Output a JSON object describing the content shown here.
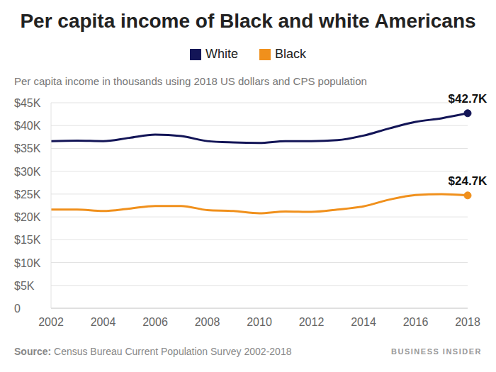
{
  "chart_data": {
    "type": "line",
    "title": "Per capita income of Black and white Americans",
    "subtitle": "Per capita income in thousands using 2018 US dollars and CPS population",
    "x": [
      2002,
      2003,
      2004,
      2005,
      2006,
      2007,
      2008,
      2009,
      2010,
      2011,
      2012,
      2013,
      2014,
      2015,
      2016,
      2017,
      2018
    ],
    "series": [
      {
        "name": "White",
        "color": "#131557",
        "values": [
          36.6,
          36.7,
          36.6,
          37.3,
          38.0,
          37.7,
          36.6,
          36.3,
          36.2,
          36.6,
          36.6,
          36.8,
          37.8,
          39.4,
          40.8,
          41.6,
          42.7
        ]
      },
      {
        "name": "Black",
        "color": "#f0901c",
        "values": [
          21.6,
          21.6,
          21.3,
          21.8,
          22.4,
          22.4,
          21.5,
          21.3,
          20.8,
          21.2,
          21.1,
          21.6,
          22.3,
          23.8,
          24.8,
          25.0,
          24.7
        ]
      }
    ],
    "xlim": [
      2002,
      2018
    ],
    "xticks": [
      2002,
      2004,
      2006,
      2008,
      2010,
      2012,
      2014,
      2016,
      2018
    ],
    "ylim": [
      0,
      45
    ],
    "yticks": [
      0,
      {
        "value": 5,
        "label": "$5K"
      },
      {
        "value": 10,
        "label": "$10K"
      },
      {
        "value": 15,
        "label": "$15K"
      },
      {
        "value": 20,
        "label": "$20K"
      },
      {
        "value": 25,
        "label": "$25K"
      },
      {
        "value": 30,
        "label": "$30K"
      },
      {
        "value": 35,
        "label": "$35K"
      },
      {
        "value": 40,
        "label": "$40K"
      },
      {
        "value": 45,
        "label": "$45K"
      }
    ],
    "grid": true,
    "legend": "top",
    "annotations": [
      {
        "series": "White",
        "x": 2018,
        "y": 42.7,
        "text": "$42.7K"
      },
      {
        "series": "Black",
        "x": 2018,
        "y": 24.7,
        "text": "$24.7K"
      }
    ],
    "source_label": "Source:",
    "source": "Census Bureau Current Population Survey 2002-2018",
    "credit": "BUSINESS INSIDER"
  }
}
